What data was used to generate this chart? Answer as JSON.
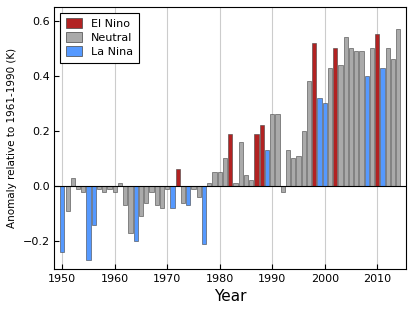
{
  "title": "",
  "xlabel": "Year",
  "ylabel": "Anomaly relative to 1961-1990 (K)",
  "xlim": [
    1948.5,
    2015.5
  ],
  "ylim": [
    -0.3,
    0.65
  ],
  "yticks": [
    -0.2,
    0.0,
    0.2,
    0.4,
    0.6
  ],
  "xticks": [
    1950,
    1960,
    1970,
    1980,
    1990,
    2000,
    2010
  ],
  "grid_x": [
    1950,
    1960,
    1970,
    1980,
    1990,
    2000,
    2010
  ],
  "bar_width": 0.8,
  "legend_labels": [
    "El Nino",
    "Neutral",
    "La Nina"
  ],
  "legend_colors": [
    "#b22222",
    "#aaaaaa",
    "#5599ff"
  ],
  "bars": [
    {
      "year": 1950,
      "value": -0.24,
      "type": "La Nina"
    },
    {
      "year": 1951,
      "value": -0.09,
      "type": "Neutral"
    },
    {
      "year": 1952,
      "value": 0.03,
      "type": "Neutral"
    },
    {
      "year": 1953,
      "value": -0.01,
      "type": "Neutral"
    },
    {
      "year": 1954,
      "value": -0.02,
      "type": "Neutral"
    },
    {
      "year": 1955,
      "value": -0.27,
      "type": "La Nina"
    },
    {
      "year": 1956,
      "value": -0.14,
      "type": "La Nina"
    },
    {
      "year": 1957,
      "value": -0.01,
      "type": "Neutral"
    },
    {
      "year": 1958,
      "value": -0.02,
      "type": "Neutral"
    },
    {
      "year": 1959,
      "value": -0.01,
      "type": "Neutral"
    },
    {
      "year": 1960,
      "value": -0.02,
      "type": "Neutral"
    },
    {
      "year": 1961,
      "value": 0.01,
      "type": "Neutral"
    },
    {
      "year": 1962,
      "value": -0.07,
      "type": "Neutral"
    },
    {
      "year": 1963,
      "value": -0.17,
      "type": "Neutral"
    },
    {
      "year": 1964,
      "value": -0.2,
      "type": "La Nina"
    },
    {
      "year": 1965,
      "value": -0.11,
      "type": "Neutral"
    },
    {
      "year": 1966,
      "value": -0.06,
      "type": "Neutral"
    },
    {
      "year": 1967,
      "value": -0.02,
      "type": "Neutral"
    },
    {
      "year": 1968,
      "value": -0.07,
      "type": "Neutral"
    },
    {
      "year": 1969,
      "value": -0.08,
      "type": "Neutral"
    },
    {
      "year": 1970,
      "value": -0.01,
      "type": "Neutral"
    },
    {
      "year": 1971,
      "value": -0.08,
      "type": "La Nina"
    },
    {
      "year": 1972,
      "value": 0.06,
      "type": "El Nino"
    },
    {
      "year": 1973,
      "value": -0.06,
      "type": "Neutral"
    },
    {
      "year": 1974,
      "value": -0.07,
      "type": "La Nina"
    },
    {
      "year": 1975,
      "value": -0.01,
      "type": "Neutral"
    },
    {
      "year": 1976,
      "value": -0.04,
      "type": "Neutral"
    },
    {
      "year": 1977,
      "value": -0.21,
      "type": "La Nina"
    },
    {
      "year": 1978,
      "value": 0.01,
      "type": "Neutral"
    },
    {
      "year": 1979,
      "value": 0.05,
      "type": "Neutral"
    },
    {
      "year": 1980,
      "value": 0.05,
      "type": "Neutral"
    },
    {
      "year": 1981,
      "value": 0.1,
      "type": "Neutral"
    },
    {
      "year": 1982,
      "value": 0.19,
      "type": "El Nino"
    },
    {
      "year": 1983,
      "value": 0.01,
      "type": "Neutral"
    },
    {
      "year": 1984,
      "value": 0.16,
      "type": "Neutral"
    },
    {
      "year": 1985,
      "value": 0.04,
      "type": "Neutral"
    },
    {
      "year": 1986,
      "value": 0.02,
      "type": "Neutral"
    },
    {
      "year": 1987,
      "value": 0.19,
      "type": "El Nino"
    },
    {
      "year": 1988,
      "value": 0.22,
      "type": "El Nino"
    },
    {
      "year": 1989,
      "value": 0.13,
      "type": "La Nina"
    },
    {
      "year": 1990,
      "value": 0.26,
      "type": "Neutral"
    },
    {
      "year": 1991,
      "value": 0.26,
      "type": "Neutral"
    },
    {
      "year": 1992,
      "value": -0.02,
      "type": "Neutral"
    },
    {
      "year": 1993,
      "value": 0.13,
      "type": "Neutral"
    },
    {
      "year": 1994,
      "value": 0.1,
      "type": "Neutral"
    },
    {
      "year": 1995,
      "value": 0.11,
      "type": "Neutral"
    },
    {
      "year": 1996,
      "value": 0.2,
      "type": "Neutral"
    },
    {
      "year": 1997,
      "value": 0.38,
      "type": "Neutral"
    },
    {
      "year": 1998,
      "value": 0.52,
      "type": "El Nino"
    },
    {
      "year": 1999,
      "value": 0.32,
      "type": "La Nina"
    },
    {
      "year": 2000,
      "value": 0.3,
      "type": "La Nina"
    },
    {
      "year": 2001,
      "value": 0.43,
      "type": "Neutral"
    },
    {
      "year": 2002,
      "value": 0.5,
      "type": "El Nino"
    },
    {
      "year": 2003,
      "value": 0.44,
      "type": "Neutral"
    },
    {
      "year": 2004,
      "value": 0.54,
      "type": "Neutral"
    },
    {
      "year": 2005,
      "value": 0.5,
      "type": "Neutral"
    },
    {
      "year": 2006,
      "value": 0.49,
      "type": "Neutral"
    },
    {
      "year": 2007,
      "value": 0.49,
      "type": "Neutral"
    },
    {
      "year": 2008,
      "value": 0.4,
      "type": "La Nina"
    },
    {
      "year": 2009,
      "value": 0.5,
      "type": "Neutral"
    },
    {
      "year": 2010,
      "value": 0.55,
      "type": "El Nino"
    },
    {
      "year": 2011,
      "value": 0.43,
      "type": "La Nina"
    },
    {
      "year": 2012,
      "value": 0.5,
      "type": "Neutral"
    },
    {
      "year": 2013,
      "value": 0.46,
      "type": "Neutral"
    },
    {
      "year": 2014,
      "value": 0.57,
      "type": "Neutral"
    }
  ],
  "color_map": {
    "El Nino": "#b22222",
    "Neutral": "#aaaaaa",
    "La Nina": "#5599ff"
  },
  "figsize": [
    4.13,
    3.11
  ],
  "dpi": 100,
  "bg_color": "#ffffff"
}
